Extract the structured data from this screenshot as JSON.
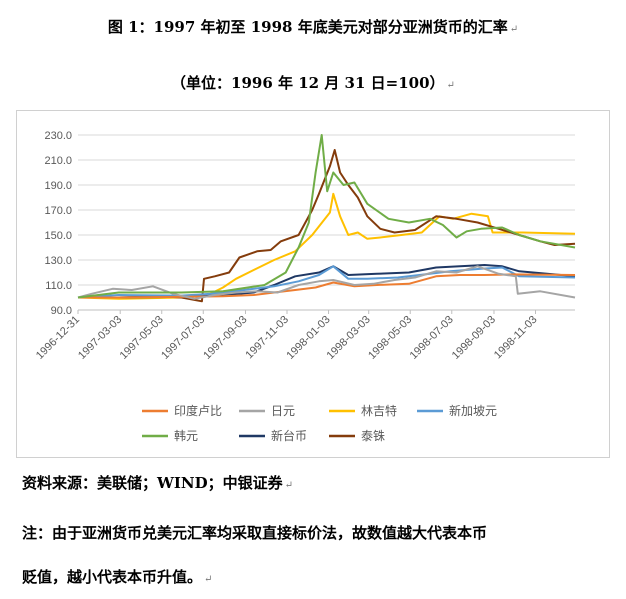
{
  "figure": {
    "title": "图 1：1997 年初至 1998 年底美元对部分亚洲货币的汇率",
    "subtitle": "（单位：1996 年 12 月 31 日=100）",
    "mark": "↵"
  },
  "notes": {
    "source": "资料来源：美联储；WIND；中银证券",
    "note_line1": "注：由于亚洲货币兑美元汇率均采取直接标价法，故数值越大代表本币",
    "note_line2": "贬值，越小代表本币升值。"
  },
  "chart_data": {
    "type": "line",
    "x_ticks": [
      "1996-12-31",
      "1997-03-03",
      "1997-05-03",
      "1997-07-03",
      "1997-09-03",
      "1997-11-03",
      "1998-01-03",
      "1998-03-03",
      "1998-05-03",
      "1998-07-03",
      "1998-09-03",
      "1998-11-03"
    ],
    "x_range": [
      "1996-12-31",
      "1998-12-31"
    ],
    "ylim": [
      90,
      230
    ],
    "y_ticks": [
      "90.0",
      "110.0",
      "130.0",
      "150.0",
      "170.0",
      "190.0",
      "210.0",
      "230.0"
    ],
    "grid": "horizontal",
    "legend_position": "bottom",
    "series": [
      {
        "name": "印度卢比",
        "color": "#ED7D31",
        "points": [
          [
            "1996-12-31",
            100
          ],
          [
            "1997-03-01",
            100
          ],
          [
            "1997-06-01",
            100.5
          ],
          [
            "1997-08-01",
            101
          ],
          [
            "1997-09-15",
            102
          ],
          [
            "1997-10-15",
            104
          ],
          [
            "1997-11-15",
            106
          ],
          [
            "1997-12-15",
            108
          ],
          [
            "1998-01-10",
            112
          ],
          [
            "1998-02-10",
            109
          ],
          [
            "1998-03-15",
            110
          ],
          [
            "1998-05-01",
            111
          ],
          [
            "1998-06-10",
            117
          ],
          [
            "1998-07-15",
            118
          ],
          [
            "1998-08-20",
            118
          ],
          [
            "1998-10-01",
            118.5
          ],
          [
            "1998-12-31",
            118
          ]
        ]
      },
      {
        "name": "日元",
        "color": "#A5A5A5",
        "points": [
          [
            "1996-12-31",
            100
          ],
          [
            "1997-01-20",
            103
          ],
          [
            "1997-02-20",
            107
          ],
          [
            "1997-03-20",
            106
          ],
          [
            "1997-04-20",
            109
          ],
          [
            "1997-05-20",
            103
          ],
          [
            "1997-06-20",
            99
          ],
          [
            "1997-07-20",
            102
          ],
          [
            "1997-08-20",
            104
          ],
          [
            "1997-09-20",
            105
          ],
          [
            "1997-10-20",
            104
          ],
          [
            "1997-11-20",
            110
          ],
          [
            "1997-12-20",
            113
          ],
          [
            "1998-01-10",
            114
          ],
          [
            "1998-02-10",
            110
          ],
          [
            "1998-03-10",
            111
          ],
          [
            "1998-04-10",
            114
          ],
          [
            "1998-05-10",
            116
          ],
          [
            "1998-06-10",
            121
          ],
          [
            "1998-07-10",
            120
          ],
          [
            "1998-08-10",
            125
          ],
          [
            "1998-09-10",
            119
          ],
          [
            "1998-10-05",
            117
          ],
          [
            "1998-10-08",
            103
          ],
          [
            "1998-11-10",
            105
          ],
          [
            "1998-12-31",
            100
          ]
        ]
      },
      {
        "name": "林吉特",
        "color": "#FFC000",
        "points": [
          [
            "1996-12-31",
            100
          ],
          [
            "1997-03-01",
            99
          ],
          [
            "1997-06-01",
            100
          ],
          [
            "1997-07-10",
            102
          ],
          [
            "1997-08-01",
            108
          ],
          [
            "1997-08-20",
            115
          ],
          [
            "1997-09-15",
            122
          ],
          [
            "1997-10-15",
            130
          ],
          [
            "1997-11-15",
            137
          ],
          [
            "1997-12-10",
            150
          ],
          [
            "1998-01-05",
            168
          ],
          [
            "1998-01-10",
            183
          ],
          [
            "1998-01-20",
            165
          ],
          [
            "1998-02-01",
            150
          ],
          [
            "1998-02-15",
            152
          ],
          [
            "1998-03-01",
            147
          ],
          [
            "1998-03-20",
            148
          ],
          [
            "1998-04-20",
            150
          ],
          [
            "1998-05-20",
            152
          ],
          [
            "1998-06-15",
            165
          ],
          [
            "1998-07-05",
            163
          ],
          [
            "1998-08-01",
            167
          ],
          [
            "1998-08-25",
            165
          ],
          [
            "1998-09-01",
            152
          ],
          [
            "1998-10-15",
            152
          ],
          [
            "1998-12-31",
            151
          ]
        ]
      },
      {
        "name": "新加坡元",
        "color": "#5B9BD5",
        "points": [
          [
            "1996-12-31",
            100
          ],
          [
            "1997-03-01",
            102
          ],
          [
            "1997-06-01",
            101.5
          ],
          [
            "1997-07-15",
            103
          ],
          [
            "1997-09-01",
            106
          ],
          [
            "1997-10-15",
            109
          ],
          [
            "1997-11-20",
            113
          ],
          [
            "1997-12-20",
            118
          ],
          [
            "1998-01-10",
            125
          ],
          [
            "1998-02-01",
            115
          ],
          [
            "1998-03-01",
            115
          ],
          [
            "1998-04-15",
            116
          ],
          [
            "1998-06-01",
            119
          ],
          [
            "1998-07-01",
            121
          ],
          [
            "1998-08-15",
            123
          ],
          [
            "1998-09-15",
            124
          ],
          [
            "1998-10-10",
            117
          ],
          [
            "1998-12-31",
            116
          ]
        ]
      },
      {
        "name": "韩元",
        "color": "#70AD47",
        "points": [
          [
            "1996-12-31",
            100
          ],
          [
            "1997-03-01",
            104
          ],
          [
            "1997-06-01",
            104
          ],
          [
            "1997-08-01",
            105
          ],
          [
            "1997-10-01",
            110
          ],
          [
            "1997-11-01",
            120
          ],
          [
            "1997-11-20",
            140
          ],
          [
            "1997-12-05",
            160
          ],
          [
            "1997-12-15",
            200
          ],
          [
            "1997-12-24",
            230
          ],
          [
            "1998-01-01",
            185
          ],
          [
            "1998-01-10",
            200
          ],
          [
            "1998-01-25",
            190
          ],
          [
            "1998-02-10",
            192
          ],
          [
            "1998-03-01",
            175
          ],
          [
            "1998-04-01",
            163
          ],
          [
            "1998-05-01",
            160
          ],
          [
            "1998-06-01",
            163
          ],
          [
            "1998-06-20",
            158
          ],
          [
            "1998-07-10",
            148
          ],
          [
            "1998-07-25",
            153
          ],
          [
            "1998-08-15",
            155
          ],
          [
            "1998-09-15",
            156
          ],
          [
            "1998-10-10",
            150
          ],
          [
            "1998-11-10",
            145
          ],
          [
            "1998-12-31",
            140
          ]
        ]
      },
      {
        "name": "新台币",
        "color": "#1F3864",
        "points": [
          [
            "1996-12-31",
            100
          ],
          [
            "1997-03-01",
            100
          ],
          [
            "1997-06-01",
            100.5
          ],
          [
            "1997-08-01",
            102
          ],
          [
            "1997-09-15",
            104
          ],
          [
            "1997-10-15",
            110
          ],
          [
            "1997-11-15",
            117
          ],
          [
            "1997-12-20",
            120
          ],
          [
            "1998-01-10",
            125
          ],
          [
            "1998-02-01",
            118
          ],
          [
            "1998-03-15",
            119
          ],
          [
            "1998-05-01",
            120
          ],
          [
            "1998-06-10",
            124
          ],
          [
            "1998-07-15",
            125
          ],
          [
            "1998-08-20",
            126
          ],
          [
            "1998-09-15",
            125
          ],
          [
            "1998-10-10",
            121
          ],
          [
            "1998-12-31",
            117
          ]
        ]
      },
      {
        "name": "泰铢",
        "color": "#843C0C",
        "points": [
          [
            "1996-12-31",
            100
          ],
          [
            "1997-03-01",
            100
          ],
          [
            "1997-05-01",
            101
          ],
          [
            "1997-06-01",
            100
          ],
          [
            "1997-07-01",
            97
          ],
          [
            "1997-07-04",
            115
          ],
          [
            "1997-07-20",
            117
          ],
          [
            "1997-08-10",
            120
          ],
          [
            "1997-08-25",
            132
          ],
          [
            "1997-09-20",
            137
          ],
          [
            "1997-10-10",
            138
          ],
          [
            "1997-10-25",
            145
          ],
          [
            "1997-11-20",
            150
          ],
          [
            "1997-12-10",
            170
          ],
          [
            "1997-12-20",
            183
          ],
          [
            "1998-01-05",
            205
          ],
          [
            "1998-01-12",
            218
          ],
          [
            "1998-01-20",
            200
          ],
          [
            "1998-02-01",
            190
          ],
          [
            "1998-02-15",
            180
          ],
          [
            "1998-03-01",
            165
          ],
          [
            "1998-03-20",
            155
          ],
          [
            "1998-04-10",
            152
          ],
          [
            "1998-05-10",
            154
          ],
          [
            "1998-06-10",
            165
          ],
          [
            "1998-07-10",
            163
          ],
          [
            "1998-08-10",
            160
          ],
          [
            "1998-09-10",
            155
          ],
          [
            "1998-10-10",
            150
          ],
          [
            "1998-11-10",
            145
          ],
          [
            "1998-12-01",
            142
          ],
          [
            "1998-12-31",
            143
          ]
        ]
      }
    ]
  }
}
